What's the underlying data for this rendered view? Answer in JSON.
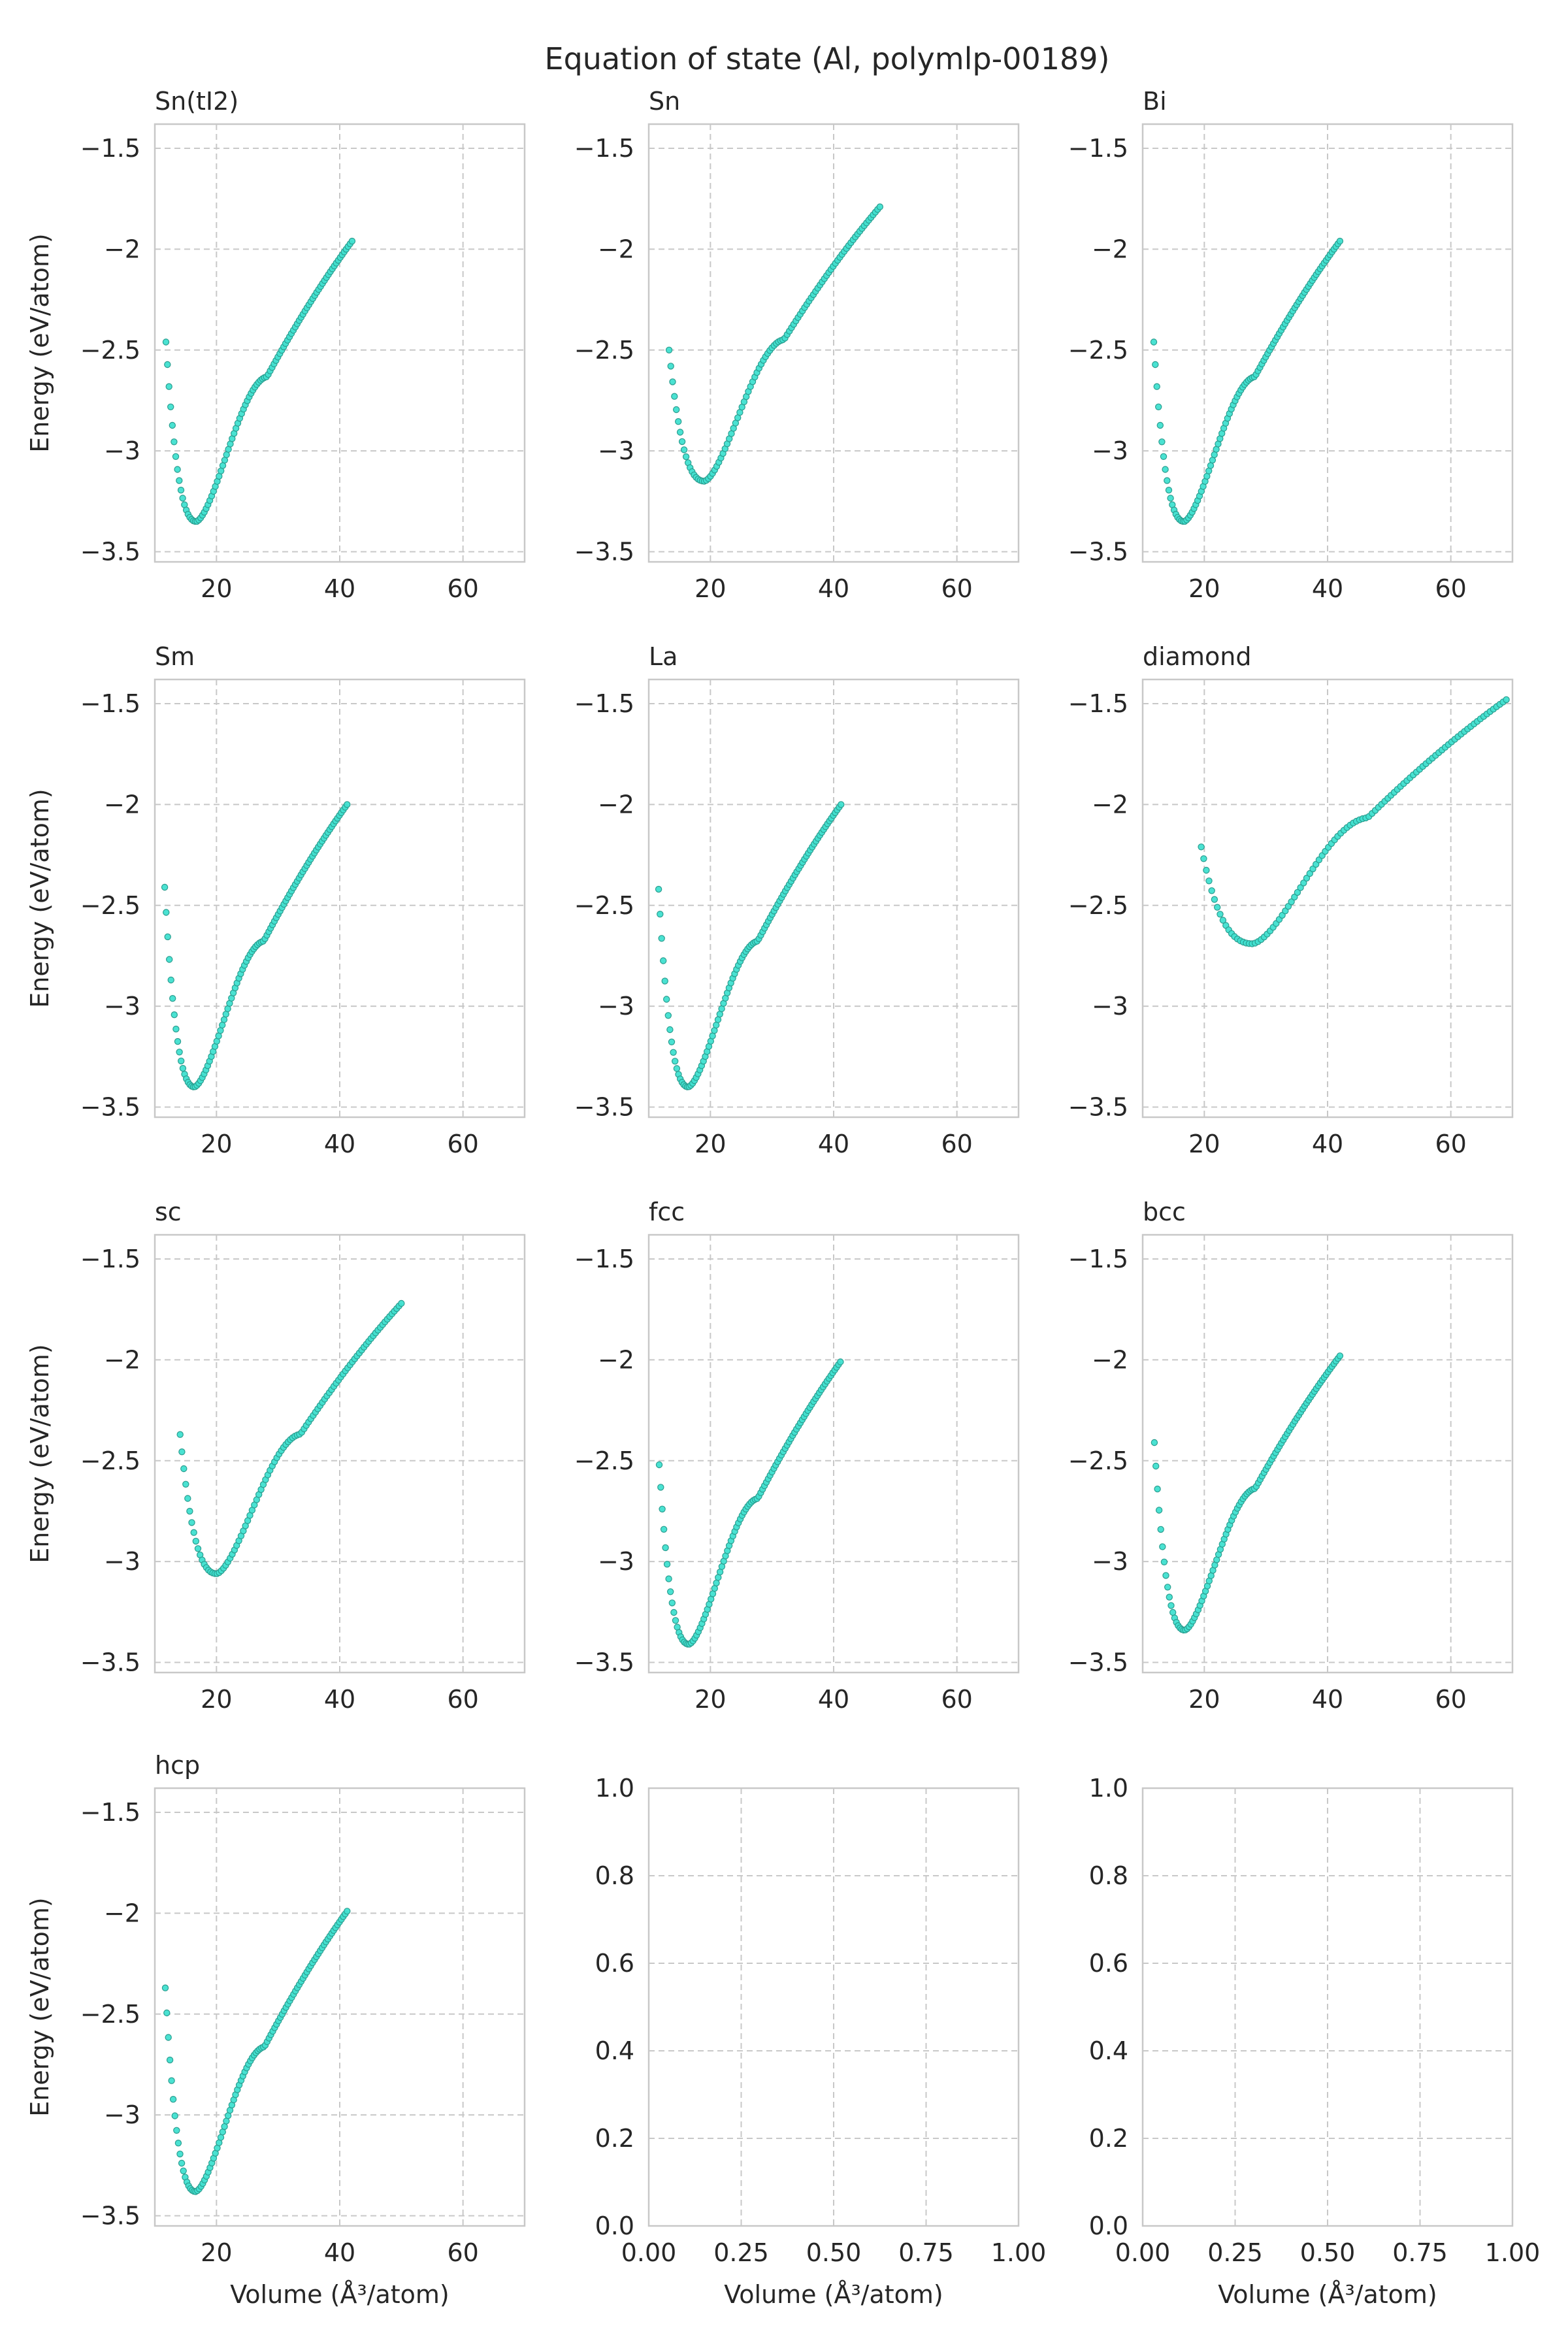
{
  "figure_title": "Equation of state (Al, polymlp-00189)",
  "colors": {
    "marker_fill": "#40e0d0",
    "marker_edge": "#2a9d8f",
    "grid": "#c8c8c8",
    "frame": "#c8c8c8",
    "text": "#262626"
  },
  "xlabel": "Volume (Å³/atom)",
  "ylabel": "Energy (eV/atom)",
  "chart_data": [
    {
      "type": "scatter",
      "title": "Sn(tI2)",
      "xlim": [
        10,
        70
      ],
      "ylim": [
        -3.55,
        -1.38
      ],
      "xticks": [
        20,
        40,
        60
      ],
      "yticks": [
        -3.5,
        -3.0,
        -2.5,
        -2.0,
        -1.5
      ],
      "curve": {
        "v0": 16.7,
        "e0": -3.35,
        "vmin": 11.8,
        "vmax": 42.0,
        "emin_at_vmin": -2.46,
        "e_at_vmax": -1.96
      }
    },
    {
      "type": "scatter",
      "title": "Sn",
      "xlim": [
        10,
        70
      ],
      "ylim": [
        -3.55,
        -1.38
      ],
      "xticks": [
        20,
        40,
        60
      ],
      "yticks": [
        -3.5,
        -3.0,
        -2.5,
        -2.0,
        -1.5
      ],
      "curve": {
        "v0": 19.0,
        "e0": -3.15,
        "vmin": 13.3,
        "vmax": 47.5,
        "emin_at_vmin": -2.5,
        "e_at_vmax": -1.79
      }
    },
    {
      "type": "scatter",
      "title": "Bi",
      "xlim": [
        10,
        70
      ],
      "ylim": [
        -3.55,
        -1.38
      ],
      "xticks": [
        20,
        40,
        60
      ],
      "yticks": [
        -3.5,
        -3.0,
        -2.5,
        -2.0,
        -1.5
      ],
      "curve": {
        "v0": 16.7,
        "e0": -3.35,
        "vmin": 11.8,
        "vmax": 42.0,
        "emin_at_vmin": -2.46,
        "e_at_vmax": -1.96
      }
    },
    {
      "type": "scatter",
      "title": "Sm",
      "xlim": [
        10,
        70
      ],
      "ylim": [
        -3.55,
        -1.38
      ],
      "xticks": [
        20,
        40,
        60
      ],
      "yticks": [
        -3.5,
        -3.0,
        -2.5,
        -2.0,
        -1.5
      ],
      "curve": {
        "v0": 16.4,
        "e0": -3.4,
        "vmin": 11.6,
        "vmax": 41.2,
        "emin_at_vmin": -2.41,
        "e_at_vmax": -2.0
      }
    },
    {
      "type": "scatter",
      "title": "La",
      "xlim": [
        10,
        70
      ],
      "ylim": [
        -3.55,
        -1.38
      ],
      "xticks": [
        20,
        40,
        60
      ],
      "yticks": [
        -3.5,
        -3.0,
        -2.5,
        -2.0,
        -1.5
      ],
      "curve": {
        "v0": 16.4,
        "e0": -3.4,
        "vmin": 11.6,
        "vmax": 41.2,
        "emin_at_vmin": -2.42,
        "e_at_vmax": -2.0
      }
    },
    {
      "type": "scatter",
      "title": "diamond",
      "xlim": [
        10,
        70
      ],
      "ylim": [
        -3.55,
        -1.38
      ],
      "xticks": [
        20,
        40,
        60
      ],
      "yticks": [
        -3.5,
        -3.0,
        -2.5,
        -2.0,
        -1.5
      ],
      "curve": {
        "v0": 27.8,
        "e0": -2.69,
        "vmin": 19.5,
        "vmax": 69.0,
        "emin_at_vmin": -2.21,
        "e_at_vmax": -1.48
      }
    },
    {
      "type": "scatter",
      "title": "sc",
      "xlim": [
        10,
        70
      ],
      "ylim": [
        -3.55,
        -1.38
      ],
      "xticks": [
        20,
        40,
        60
      ],
      "yticks": [
        -3.5,
        -3.0,
        -2.5,
        -2.0,
        -1.5
      ],
      "curve": {
        "v0": 20.0,
        "e0": -3.06,
        "vmin": 14.1,
        "vmax": 50.0,
        "emin_at_vmin": -2.37,
        "e_at_vmax": -1.72
      }
    },
    {
      "type": "scatter",
      "title": "fcc",
      "xlim": [
        10,
        70
      ],
      "ylim": [
        -3.55,
        -1.38
      ],
      "xticks": [
        20,
        40,
        60
      ],
      "yticks": [
        -3.5,
        -3.0,
        -2.5,
        -2.0,
        -1.5
      ],
      "curve": {
        "v0": 16.5,
        "e0": -3.41,
        "vmin": 11.7,
        "vmax": 41.1,
        "emin_at_vmin": -2.52,
        "e_at_vmax": -2.01
      }
    },
    {
      "type": "scatter",
      "title": "bcc",
      "xlim": [
        10,
        70
      ],
      "ylim": [
        -3.55,
        -1.38
      ],
      "xticks": [
        20,
        40,
        60
      ],
      "yticks": [
        -3.5,
        -3.0,
        -2.5,
        -2.0,
        -1.5
      ],
      "curve": {
        "v0": 16.8,
        "e0": -3.34,
        "vmin": 11.9,
        "vmax": 42.0,
        "emin_at_vmin": -2.41,
        "e_at_vmax": -1.98
      }
    },
    {
      "type": "scatter",
      "title": "hcp",
      "xlim": [
        10,
        70
      ],
      "ylim": [
        -3.55,
        -1.38
      ],
      "xticks": [
        20,
        40,
        60
      ],
      "yticks": [
        -3.5,
        -3.0,
        -2.5,
        -2.0,
        -1.5
      ],
      "curve": {
        "v0": 16.6,
        "e0": -3.38,
        "vmin": 11.7,
        "vmax": 41.2,
        "emin_at_vmin": -2.37,
        "e_at_vmax": -1.99
      }
    },
    {
      "type": "scatter",
      "title": "",
      "empty": true,
      "xlim": [
        0,
        1
      ],
      "ylim": [
        0,
        1
      ],
      "xticks": [
        0.0,
        0.25,
        0.5,
        0.75,
        1.0
      ],
      "yticks": [
        0.0,
        0.2,
        0.4,
        0.6,
        0.8,
        1.0
      ]
    },
    {
      "type": "scatter",
      "title": "",
      "empty": true,
      "xlim": [
        0,
        1
      ],
      "ylim": [
        0,
        1
      ],
      "xticks": [
        0.0,
        0.25,
        0.5,
        0.75,
        1.0
      ],
      "yticks": [
        0.0,
        0.2,
        0.4,
        0.6,
        0.8,
        1.0
      ]
    }
  ]
}
